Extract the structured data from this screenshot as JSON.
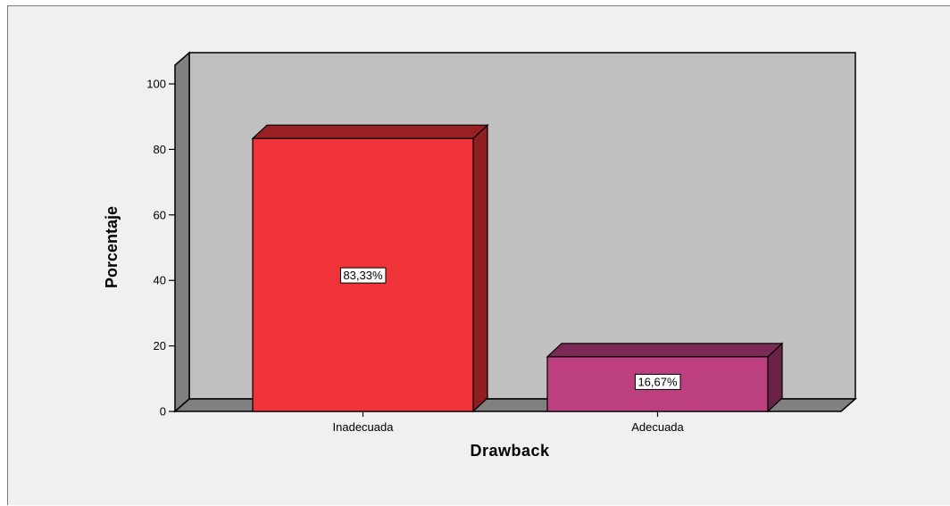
{
  "chart_data": {
    "type": "bar",
    "categories": [
      "Inadecuada",
      "Adecuada"
    ],
    "values": [
      83.33,
      16.67
    ],
    "data_labels": [
      "83,33%",
      "16,67%"
    ],
    "title": "",
    "xlabel": "Drawback",
    "ylabel": "Porcentaje",
    "ylim": [
      0,
      100
    ],
    "yticks": [
      "0",
      "20",
      "40",
      "60",
      "80",
      "100"
    ],
    "grid": false,
    "style": "3d",
    "colors": {
      "bars": [
        "#f03239",
        "#bc3f80"
      ],
      "bar_sides": [
        "#8e1e22",
        "#6b2247"
      ],
      "bar_tops": [
        "#9a1f24",
        "#7a2a55"
      ],
      "wall": "#c0c0c0",
      "side_wall": "#808080",
      "floor": "#808080",
      "background": "#f0f0f0"
    }
  }
}
